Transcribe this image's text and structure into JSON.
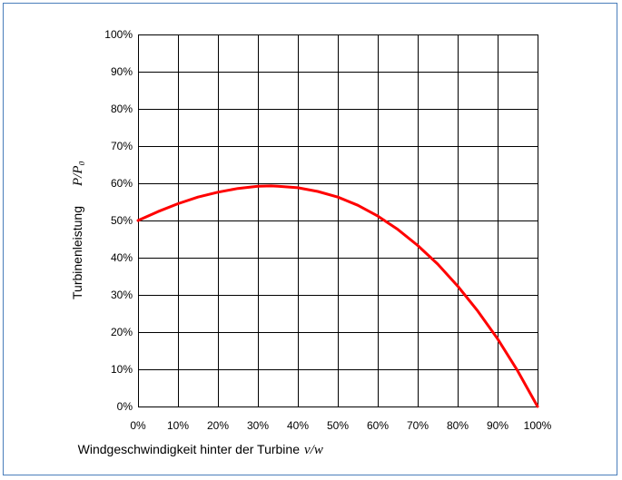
{
  "chart_data": {
    "type": "line",
    "x_ticks": [
      "0%",
      "10%",
      "20%",
      "30%",
      "40%",
      "50%",
      "60%",
      "70%",
      "80%",
      "90%",
      "100%"
    ],
    "y_ticks": [
      "0%",
      "10%",
      "20%",
      "30%",
      "40%",
      "50%",
      "60%",
      "70%",
      "80%",
      "90%",
      "100%"
    ],
    "xlabel": "Windgeschwindigkeit hinter der Turbine",
    "xlabel_var": "v/w",
    "ylabel": "Turbinenleistung",
    "ylabel_var": "P/P₀",
    "xlim": [
      0,
      1
    ],
    "ylim": [
      0,
      1
    ],
    "grid": true,
    "series": [
      {
        "color": "#ff0000",
        "x": [
          0,
          0.05,
          0.1,
          0.15,
          0.2,
          0.25,
          0.3,
          0.333,
          0.35,
          0.4,
          0.45,
          0.5,
          0.55,
          0.6,
          0.65,
          0.7,
          0.75,
          0.8,
          0.85,
          0.9,
          0.95,
          1.0
        ],
        "y": [
          0.5,
          0.524,
          0.545,
          0.563,
          0.576,
          0.586,
          0.592,
          0.593,
          0.592,
          0.588,
          0.578,
          0.563,
          0.541,
          0.512,
          0.476,
          0.433,
          0.383,
          0.324,
          0.257,
          0.182,
          0.096,
          0.0
        ]
      }
    ]
  }
}
